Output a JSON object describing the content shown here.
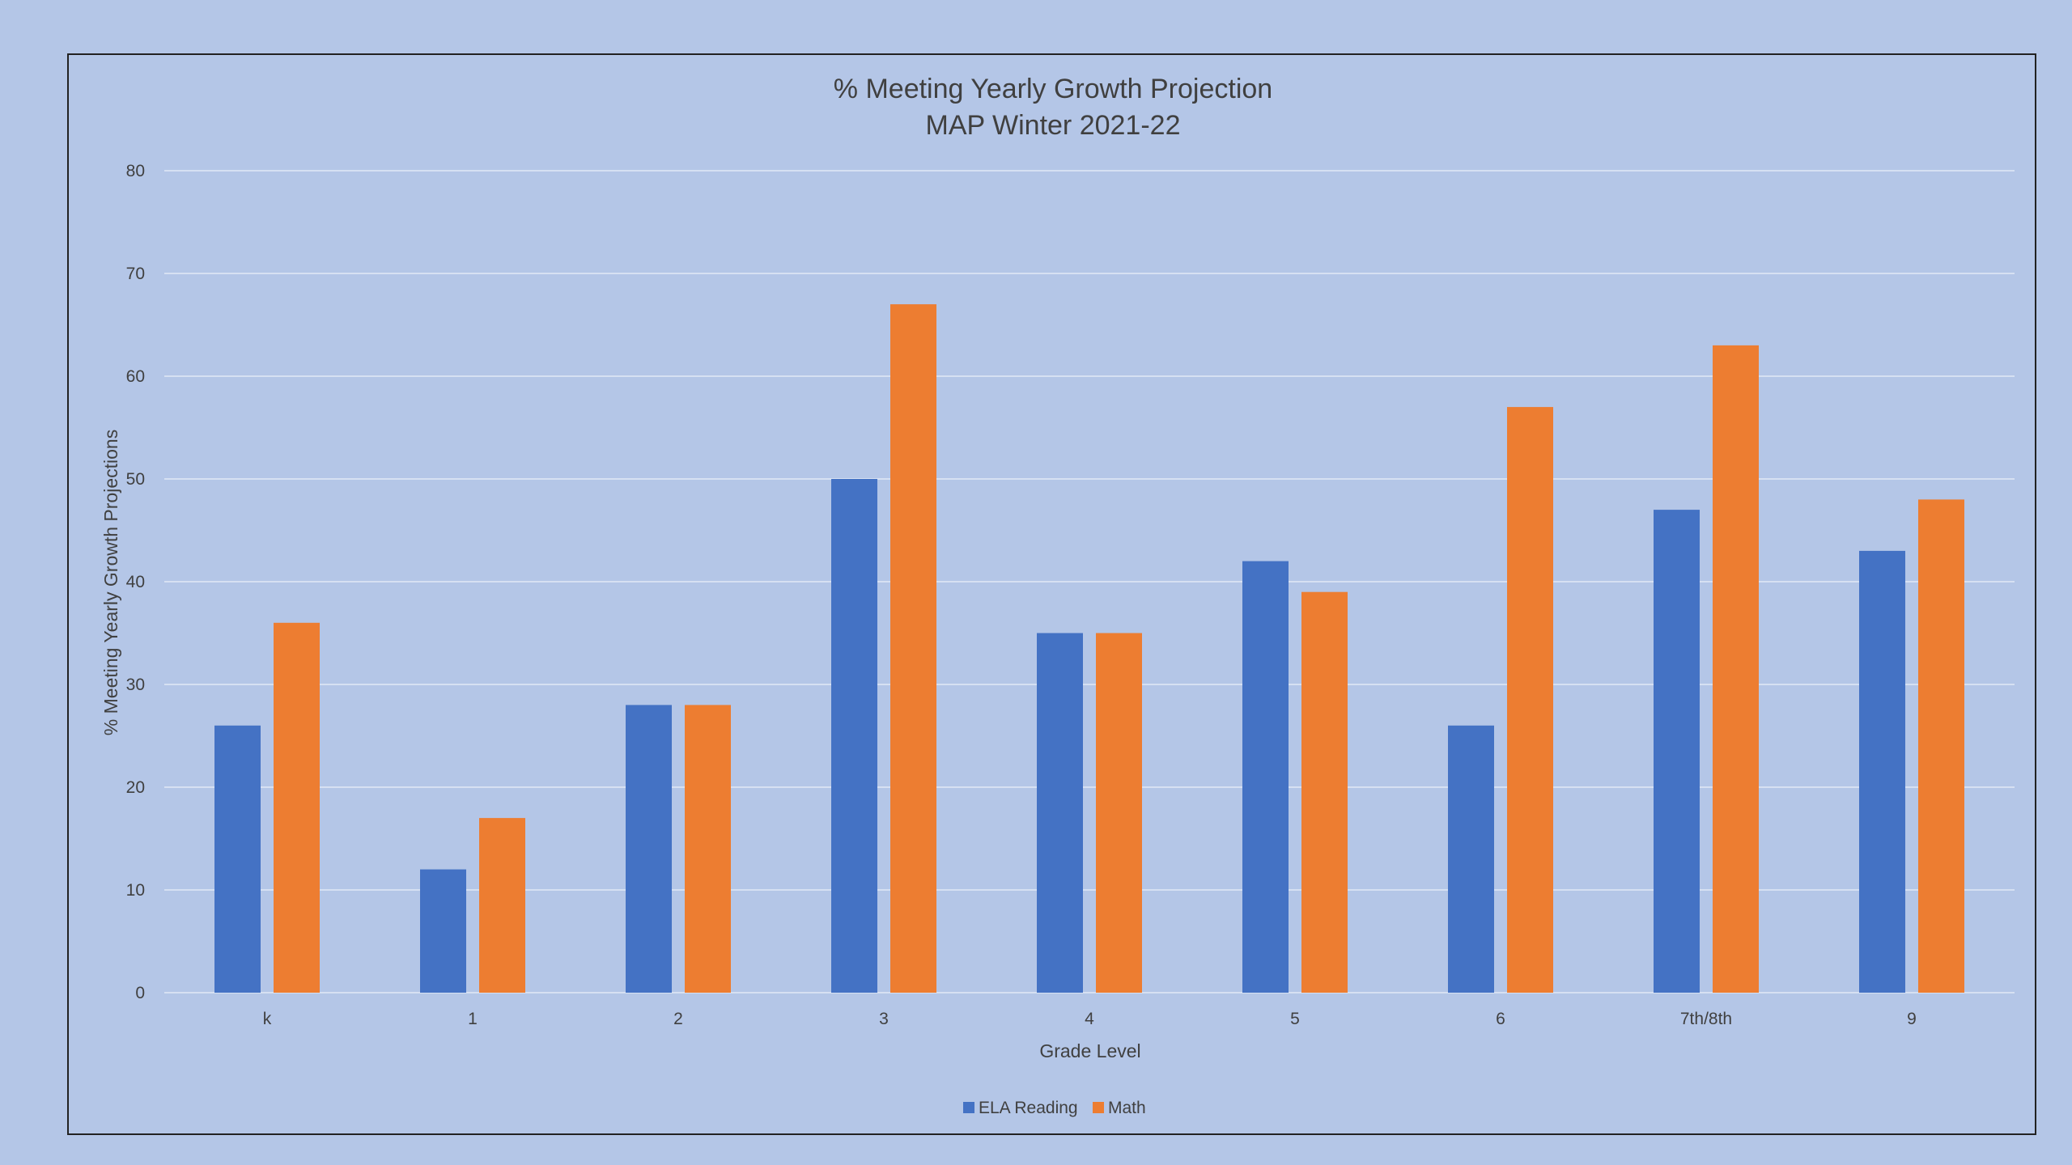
{
  "chart_data": {
    "type": "bar",
    "title": "% Meeting Yearly Growth Projection",
    "subtitle": "MAP Winter 2021-22",
    "xlabel": "Grade Level",
    "ylabel": "% Meeting Yearly Growth Projections",
    "ylim": [
      0,
      80
    ],
    "yticks": [
      0,
      10,
      20,
      30,
      40,
      50,
      60,
      70,
      80
    ],
    "grid": true,
    "legend_position": "bottom",
    "categories": [
      "k",
      "1",
      "2",
      "3",
      "4",
      "5",
      "6",
      "7th/8th",
      "9"
    ],
    "series": [
      {
        "name": "ELA Reading",
        "color": "#4472c4",
        "values": [
          26,
          12,
          28,
          50,
          35,
          42,
          26,
          47,
          43
        ]
      },
      {
        "name": "Math",
        "color": "#ed7d31",
        "values": [
          36,
          17,
          28,
          67,
          35,
          39,
          57,
          63,
          48
        ]
      }
    ],
    "colors": {
      "background": "#b4c6e7",
      "gridline": "#d6e0f2",
      "text": "#404040",
      "border": "#222222"
    }
  }
}
